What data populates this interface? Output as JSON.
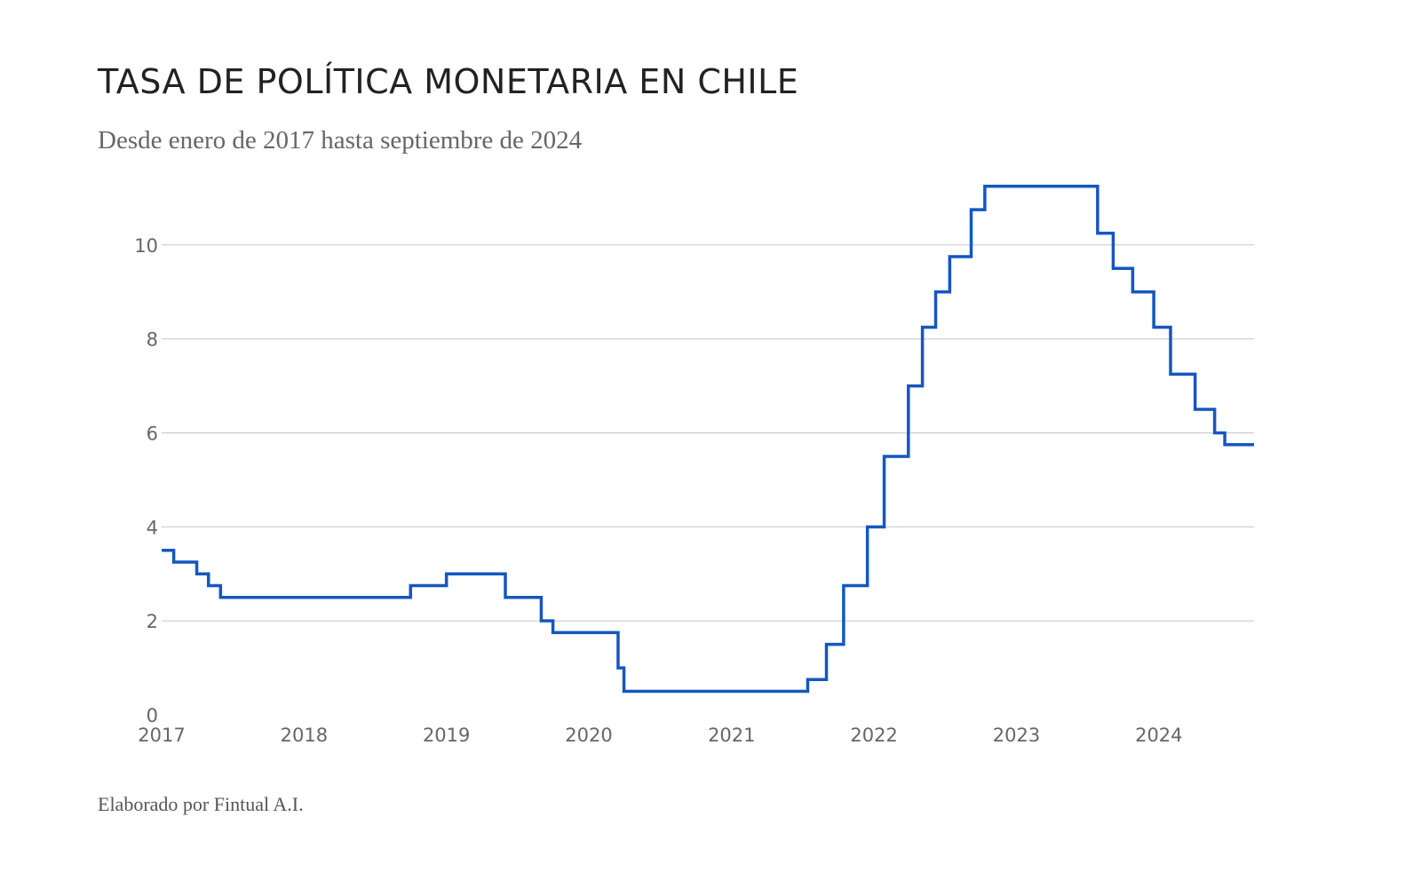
{
  "header": {
    "title": "TASA DE POLÍTICA MONETARIA EN CHILE",
    "subtitle": "Desde enero de 2017 hasta septiembre de 2024"
  },
  "footer": {
    "credit": "Elaborado por Fintual A.I."
  },
  "colors": {
    "series": "#1457c0",
    "grid": "#cccccc",
    "tick_text": "#666666",
    "title": "#222222"
  },
  "chart_data": {
    "type": "line",
    "line_style": "step",
    "title": "TASA DE POLÍTICA MONETARIA EN CHILE",
    "subtitle": "Desde enero de 2017 hasta septiembre de 2024",
    "xlabel": "",
    "ylabel": "",
    "xlim": [
      "2017-01-01",
      "2024-09-01"
    ],
    "ylim": [
      0,
      12
    ],
    "grid": true,
    "x_ticks": [
      "2017",
      "2018",
      "2019",
      "2020",
      "2021",
      "2022",
      "2023",
      "2024"
    ],
    "y_ticks": [
      0,
      2,
      4,
      6,
      8,
      10
    ],
    "series": [
      {
        "points": [
          {
            "x": "2017-01-01",
            "y": 3.5
          },
          {
            "x": "2017-02-01",
            "y": 3.25
          },
          {
            "x": "2017-04-01",
            "y": 3.0
          },
          {
            "x": "2017-05-01",
            "y": 2.75
          },
          {
            "x": "2017-06-01",
            "y": 2.5
          },
          {
            "x": "2018-10-01",
            "y": 2.75
          },
          {
            "x": "2019-01-01",
            "y": 3.0
          },
          {
            "x": "2019-06-01",
            "y": 2.5
          },
          {
            "x": "2019-09-01",
            "y": 2.0
          },
          {
            "x": "2019-10-01",
            "y": 1.75
          },
          {
            "x": "2020-03-16",
            "y": 1.0
          },
          {
            "x": "2020-03-31",
            "y": 0.5
          },
          {
            "x": "2021-07-15",
            "y": 0.75
          },
          {
            "x": "2021-09-01",
            "y": 1.5
          },
          {
            "x": "2021-10-15",
            "y": 2.75
          },
          {
            "x": "2021-12-15",
            "y": 4.0
          },
          {
            "x": "2022-01-27",
            "y": 5.5
          },
          {
            "x": "2022-03-30",
            "y": 7.0
          },
          {
            "x": "2022-05-05",
            "y": 8.25
          },
          {
            "x": "2022-06-08",
            "y": 9.0
          },
          {
            "x": "2022-07-14",
            "y": 9.75
          },
          {
            "x": "2022-09-07",
            "y": 10.75
          },
          {
            "x": "2022-10-12",
            "y": 11.25
          },
          {
            "x": "2023-07-28",
            "y": 10.25
          },
          {
            "x": "2023-09-06",
            "y": 9.5
          },
          {
            "x": "2023-10-26",
            "y": 9.0
          },
          {
            "x": "2023-12-19",
            "y": 8.25
          },
          {
            "x": "2024-01-31",
            "y": 7.25
          },
          {
            "x": "2024-04-03",
            "y": 6.5
          },
          {
            "x": "2024-05-23",
            "y": 6.0
          },
          {
            "x": "2024-06-18",
            "y": 5.75
          },
          {
            "x": "2024-09-01",
            "y": 5.75
          }
        ]
      }
    ]
  }
}
